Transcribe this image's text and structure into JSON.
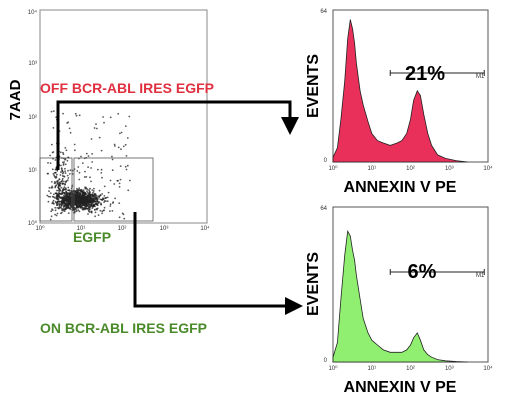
{
  "scatter": {
    "ylabel": "7AAD",
    "xlabel": "EGFP",
    "xticks": [
      "10⁰",
      "10¹",
      "10²",
      "10³",
      "10⁴"
    ],
    "yticks": [
      "10⁰",
      "10¹",
      "10²",
      "10³",
      "10⁴"
    ],
    "gate_off_label": "OFF BCR-ABL IRES EGFP",
    "gate_on_label": "ON BCR-ABL IRES EGFP",
    "colors": {
      "off": "#e03040",
      "on": "#4a8a2a"
    }
  },
  "chart_data": [
    {
      "type": "area",
      "title": "",
      "xlabel": "ANNEXIN V PE",
      "ylabel": "EVENTS",
      "xscale": "log",
      "xlim": [
        1,
        10000
      ],
      "ylim": [
        0,
        64
      ],
      "yticks": [
        "0",
        "64"
      ],
      "xticks": [
        "10⁰",
        "10¹",
        "10²",
        "10³",
        "10⁴"
      ],
      "fill": "#e8305a",
      "marker": {
        "label": "M1",
        "range": [
          30,
          8000
        ]
      },
      "annotation": "21%",
      "series": [
        {
          "x": [
            1,
            1.3,
            1.6,
            2,
            2.4,
            2.8,
            3.2,
            3.6,
            4,
            5,
            6,
            8,
            10,
            14,
            20,
            30,
            45,
            60,
            80,
            100,
            120,
            150,
            180,
            220,
            280,
            350,
            500,
            800,
            1500,
            3000
          ],
          "values": [
            2,
            6,
            18,
            34,
            52,
            60,
            56,
            50,
            42,
            30,
            24,
            17,
            12,
            9,
            8,
            7,
            8,
            9,
            12,
            18,
            26,
            30,
            28,
            20,
            12,
            7,
            3,
            1.5,
            0.6,
            0
          ]
        }
      ]
    },
    {
      "type": "area",
      "title": "",
      "xlabel": "ANNEXIN V PE",
      "ylabel": "EVENTS",
      "xscale": "log",
      "xlim": [
        1,
        10000
      ],
      "ylim": [
        0,
        64
      ],
      "yticks": [
        "0",
        "64"
      ],
      "xticks": [
        "10⁰",
        "10¹",
        "10²",
        "10³",
        "10⁴"
      ],
      "fill": "#90ee70",
      "marker": {
        "label": "M1",
        "range": [
          30,
          8000
        ]
      },
      "annotation": "6%",
      "series": [
        {
          "x": [
            1,
            1.3,
            1.6,
            2,
            2.4,
            2.8,
            3.2,
            3.6,
            4,
            5,
            6,
            8,
            10,
            14,
            20,
            30,
            45,
            60,
            80,
            100,
            120,
            150,
            180,
            220,
            280,
            350,
            500,
            800,
            1500,
            3000
          ],
          "values": [
            2,
            8,
            26,
            44,
            54,
            52,
            46,
            42,
            36,
            26,
            18,
            12,
            9,
            7,
            5,
            4,
            4,
            4,
            5,
            7,
            10,
            12,
            9,
            5,
            3,
            2,
            1,
            0.5,
            0.2,
            0
          ]
        }
      ]
    }
  ]
}
